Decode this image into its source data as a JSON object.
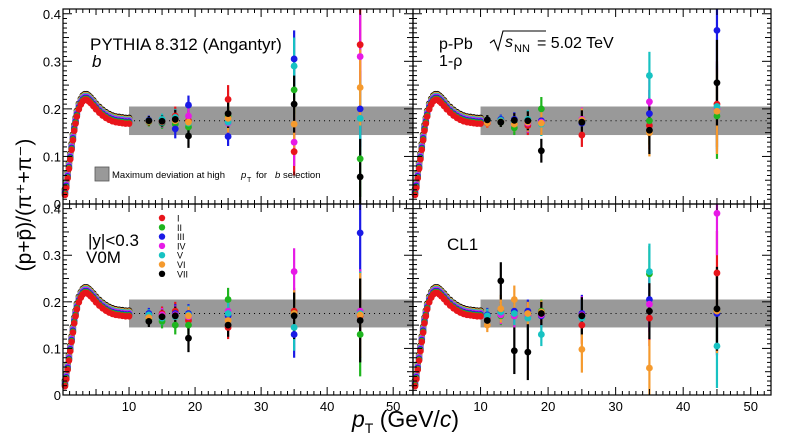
{
  "chart_data": {
    "type": "scatter",
    "title": "",
    "xlabel": "p_T (GeV/c)",
    "ylabel": "(p+p̄)/(π⁺+π⁻)",
    "xlim": [
      0,
      53
    ],
    "ylim": [
      0,
      0.41
    ],
    "xticks": [
      10,
      20,
      30,
      40,
      50
    ],
    "yticks": [
      0,
      0.1,
      0.2,
      0.3,
      0.4
    ],
    "xtick_labels": [
      "10",
      "20",
      "30",
      "40",
      "50"
    ],
    "ytick_labels": [
      "0",
      "0.1",
      "0.2",
      "0.3",
      "0.4"
    ],
    "band": {
      "x_from": 10,
      "x_to": 53,
      "y_low": 0.145,
      "y_high": 0.205
    },
    "reference_line_y": 0.175,
    "xlabel_parts": {
      "p": "p",
      "sub": "T",
      "rest": " (GeV/",
      "c": "c",
      "close": ")"
    },
    "ylabel_text": "(p+p̄)/(π⁺+π⁻)",
    "legend_band_text": "Maximum deviation at high",
    "legend_band_pt": "p",
    "legend_band_pt_sub": "T",
    "legend_band_for": "for",
    "legend_band_b": "b",
    "legend_band_tail": "selection",
    "top_label_system": "p-Pb",
    "top_label_energy_sqrt": "s",
    "top_label_energy_sub": "NN",
    "top_label_energy_val": "= 5.02 TeV",
    "classes": [
      {
        "name": "I",
        "color": "#e8151b"
      },
      {
        "name": "II",
        "color": "#1fb51f"
      },
      {
        "name": "III",
        "color": "#1a1ae6"
      },
      {
        "name": "IV",
        "color": "#e61ae6"
      },
      {
        "name": "V",
        "color": "#17c2c2"
      },
      {
        "name": "VI",
        "color": "#f59a2e"
      },
      {
        "name": "VII",
        "color": "#000000"
      }
    ],
    "panels": [
      {
        "id": "b",
        "labels": [
          "PYTHIA 8.312 (Angantyr)",
          "b"
        ],
        "high_pt": [
          {
            "x": 13,
            "vals": [
              0.175,
              0.173,
              0.176,
              0.174,
              0.175,
              0.174,
              0.175
            ],
            "errs": [
              0.01,
              0.01,
              0.01,
              0.01,
              0.01,
              0.01,
              0.01
            ]
          },
          {
            "x": 15,
            "vals": [
              0.175,
              0.17,
              0.172,
              0.174,
              0.178,
              0.173,
              0.174
            ],
            "errs": [
              0.012,
              0.012,
              0.012,
              0.012,
              0.012,
              0.012,
              0.012
            ]
          },
          {
            "x": 17,
            "vals": [
              0.185,
              0.168,
              0.158,
              0.18,
              0.182,
              0.175,
              0.178
            ],
            "errs": [
              0.02,
              0.018,
              0.02,
              0.018,
              0.018,
              0.018,
              0.02
            ]
          },
          {
            "x": 19,
            "vals": [
              0.175,
              0.162,
              0.208,
              0.185,
              0.17,
              0.172,
              0.143
            ],
            "errs": [
              0.02,
              0.022,
              0.02,
              0.02,
              0.02,
              0.02,
              0.025
            ]
          },
          {
            "x": 25,
            "vals": [
              0.22,
              0.185,
              0.142,
              0.17,
              0.172,
              0.18,
              0.19
            ],
            "errs": [
              0.03,
              0.03,
              0.02,
              0.02,
              0.02,
              0.03,
              0.03
            ]
          },
          {
            "x": 35,
            "vals": [
              0.11,
              0.24,
              0.305,
              0.13,
              0.29,
              0.168,
              0.21
            ],
            "errs": [
              0.05,
              0.05,
              0.06,
              0.05,
              0.06,
              0.05,
              0.06
            ]
          },
          {
            "x": 45,
            "vals": [
              0.335,
              0.095,
              0.2,
              0.31,
              0.18,
              0.245,
              0.057
            ],
            "errs": [
              0.09,
              0.08,
              0.08,
              0.09,
              0.08,
              0.08,
              0.08
            ]
          }
        ]
      },
      {
        "id": "1-rho",
        "labels": [
          "p-Pb",
          "1-ρ"
        ],
        "high_pt": [
          {
            "x": 11,
            "vals": [
              0.17,
              0.175,
              0.174,
              0.172,
              0.176,
              0.171,
              0.177
            ],
            "errs": [
              0.01,
              0.01,
              0.01,
              0.01,
              0.01,
              0.01,
              0.01
            ]
          },
          {
            "x": 13,
            "vals": [
              0.175,
              0.172,
              0.178,
              0.174,
              0.176,
              0.173,
              0.172
            ],
            "errs": [
              0.01,
              0.01,
              0.01,
              0.01,
              0.01,
              0.01,
              0.01
            ]
          },
          {
            "x": 15,
            "vals": [
              0.17,
              0.16,
              0.178,
              0.175,
              0.172,
              0.168,
              0.176
            ],
            "errs": [
              0.015,
              0.015,
              0.015,
              0.015,
              0.015,
              0.015,
              0.015
            ]
          },
          {
            "x": 17,
            "vals": [
              0.165,
              0.175,
              0.17,
              0.17,
              0.178,
              0.172,
              0.175
            ],
            "errs": [
              0.02,
              0.02,
              0.02,
              0.02,
              0.02,
              0.02,
              0.02
            ]
          },
          {
            "x": 19,
            "vals": [
              0.17,
              0.2,
              0.175,
              0.172,
              0.168,
              0.17,
              0.112
            ],
            "errs": [
              0.025,
              0.025,
              0.025,
              0.025,
              0.025,
              0.025,
              0.025
            ]
          },
          {
            "x": 25,
            "vals": [
              0.145,
              0.175,
              0.17,
              0.178,
              0.175,
              0.176,
              0.172
            ],
            "errs": [
              0.025,
              0.025,
              0.025,
              0.025,
              0.025,
              0.025,
              0.025
            ]
          },
          {
            "x": 35,
            "vals": [
              0.165,
              0.175,
              0.19,
              0.215,
              0.27,
              0.15,
              0.155
            ],
            "errs": [
              0.05,
              0.05,
              0.05,
              0.05,
              0.05,
              0.05,
              0.05
            ]
          },
          {
            "x": 45,
            "vals": [
              0.21,
              0.185,
              0.365,
              0.2,
              0.205,
              0.195,
              0.255
            ],
            "errs": [
              0.09,
              0.09,
              0.09,
              0.09,
              0.09,
              0.09,
              0.09
            ]
          }
        ]
      },
      {
        "id": "V0M",
        "labels": [
          "|y|<0.3",
          "V0M"
        ],
        "high_pt": [
          {
            "x": 13,
            "vals": [
              0.17,
              0.162,
              0.175,
              0.168,
              0.172,
              0.166,
              0.158
            ],
            "errs": [
              0.012,
              0.012,
              0.012,
              0.012,
              0.012,
              0.012,
              0.012
            ]
          },
          {
            "x": 15,
            "vals": [
              0.175,
              0.158,
              0.17,
              0.172,
              0.165,
              0.168,
              0.168
            ],
            "errs": [
              0.015,
              0.015,
              0.015,
              0.015,
              0.015,
              0.015,
              0.015
            ]
          },
          {
            "x": 17,
            "vals": [
              0.18,
              0.15,
              0.175,
              0.172,
              0.168,
              0.17,
              0.17
            ],
            "errs": [
              0.02,
              0.02,
              0.02,
              0.02,
              0.02,
              0.02,
              0.02
            ]
          },
          {
            "x": 19,
            "vals": [
              0.16,
              0.15,
              0.175,
              0.168,
              0.172,
              0.17,
              0.122
            ],
            "errs": [
              0.02,
              0.02,
              0.02,
              0.02,
              0.02,
              0.02,
              0.03
            ]
          },
          {
            "x": 25,
            "vals": [
              0.145,
              0.205,
              0.17,
              0.18,
              0.175,
              0.16,
              0.15
            ],
            "errs": [
              0.025,
              0.025,
              0.025,
              0.025,
              0.025,
              0.025,
              0.025
            ]
          },
          {
            "x": 35,
            "vals": [
              0.18,
              0.175,
              0.13,
              0.265,
              0.145,
              0.175,
              0.17
            ],
            "errs": [
              0.05,
              0.05,
              0.05,
              0.05,
              0.05,
              0.05,
              0.05
            ]
          },
          {
            "x": 45,
            "vals": [
              0.17,
              0.13,
              0.348,
              0.18,
              0.175,
              0.172,
              0.16
            ],
            "errs": [
              0.09,
              0.09,
              0.09,
              0.09,
              0.09,
              0.09,
              0.09
            ]
          }
        ]
      },
      {
        "id": "CL1",
        "labels": [
          "CL1"
        ],
        "high_pt": [
          {
            "x": 11,
            "vals": [
              0.165,
              0.17,
              0.172,
              0.168,
              0.17,
              0.15,
              0.16
            ],
            "errs": [
              0.015,
              0.015,
              0.015,
              0.015,
              0.015,
              0.015,
              0.015
            ]
          },
          {
            "x": 13,
            "vals": [
              0.18,
              0.17,
              0.175,
              0.172,
              0.178,
              0.185,
              0.245
            ],
            "errs": [
              0.02,
              0.02,
              0.02,
              0.02,
              0.02,
              0.03,
              0.04
            ]
          },
          {
            "x": 15,
            "vals": [
              0.175,
              0.17,
              0.18,
              0.17,
              0.175,
              0.205,
              0.095
            ],
            "errs": [
              0.025,
              0.025,
              0.025,
              0.025,
              0.025,
              0.03,
              0.05
            ]
          },
          {
            "x": 17,
            "vals": [
              0.17,
              0.175,
              0.18,
              0.17,
              0.165,
              0.175,
              0.092
            ],
            "errs": [
              0.025,
              0.025,
              0.025,
              0.025,
              0.025,
              0.025,
              0.06
            ]
          },
          {
            "x": 19,
            "vals": [
              0.175,
              0.18,
              0.17,
              0.172,
              0.13,
              0.178,
              0.175
            ],
            "errs": [
              0.025,
              0.025,
              0.025,
              0.025,
              0.025,
              0.025,
              0.025
            ]
          },
          {
            "x": 25,
            "vals": [
              0.15,
              0.17,
              0.175,
              0.172,
              0.165,
              0.098,
              0.17
            ],
            "errs": [
              0.04,
              0.04,
              0.04,
              0.04,
              0.04,
              0.05,
              0.04
            ]
          },
          {
            "x": 35,
            "vals": [
              0.165,
              0.26,
              0.205,
              0.195,
              0.265,
              0.058,
              0.18
            ],
            "errs": [
              0.06,
              0.06,
              0.06,
              0.06,
              0.06,
              0.06,
              0.06
            ]
          },
          {
            "x": 45,
            "vals": [
              0.262,
              0.18,
              0.175,
              0.39,
              0.105,
              0.18,
              0.185
            ],
            "errs": [
              0.09,
              0.09,
              0.09,
              0.09,
              0.09,
              0.09,
              0.09
            ]
          }
        ]
      }
    ],
    "low_pt_curve": {
      "x": [
        0.3,
        0.5,
        0.7,
        0.9,
        1.1,
        1.3,
        1.5,
        1.7,
        1.9,
        2.1,
        2.4,
        2.7,
        3.0,
        3.3,
        3.6,
        3.9,
        4.2,
        4.6,
        5.0,
        5.5,
        6.0,
        6.5,
        7.0,
        7.5,
        8.0,
        8.5,
        9.0,
        9.5,
        10
      ],
      "y": [
        0.025,
        0.04,
        0.06,
        0.08,
        0.1,
        0.12,
        0.14,
        0.16,
        0.175,
        0.19,
        0.205,
        0.215,
        0.222,
        0.225,
        0.225,
        0.222,
        0.218,
        0.212,
        0.205,
        0.198,
        0.192,
        0.187,
        0.183,
        0.18,
        0.178,
        0.177,
        0.176,
        0.175,
        0.175
      ]
    }
  }
}
